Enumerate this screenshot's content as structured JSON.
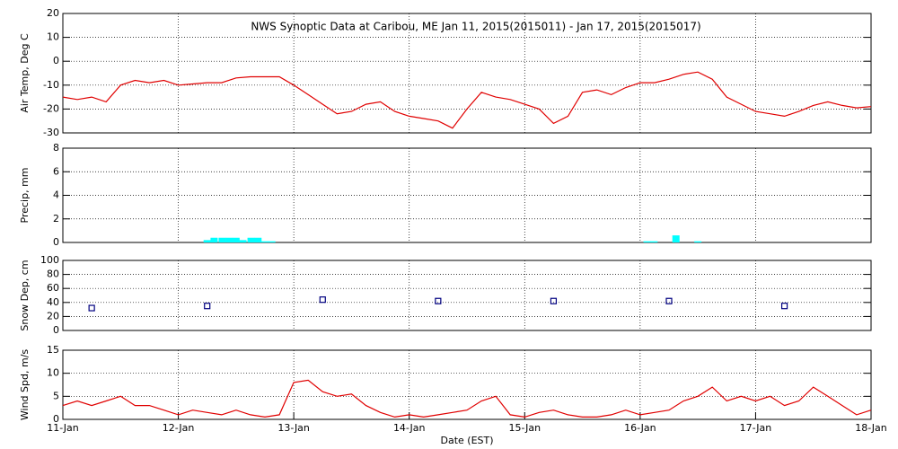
{
  "chart_data": [
    {
      "type": "line",
      "title": "NWS Synoptic Data at Caribou, ME   Jan 11, 2015(2015011) - Jan 17, 2015(2015017)",
      "ylabel": "Air Temp, Deg C",
      "color": "#e00000",
      "x": [
        0,
        0.125,
        0.25,
        0.375,
        0.5,
        0.625,
        0.75,
        0.875,
        1,
        1.125,
        1.25,
        1.375,
        1.5,
        1.625,
        1.75,
        1.875,
        2,
        2.125,
        2.25,
        2.375,
        2.5,
        2.625,
        2.75,
        2.875,
        3,
        3.125,
        3.25,
        3.375,
        3.5,
        3.625,
        3.75,
        3.875,
        4,
        4.125,
        4.25,
        4.375,
        4.5,
        4.625,
        4.75,
        4.875,
        5,
        5.125,
        5.25,
        5.375,
        5.5,
        5.625,
        5.75,
        5.875,
        6,
        6.125,
        6.25,
        6.375,
        6.5,
        6.625,
        6.75,
        6.875,
        7
      ],
      "values": [
        -15,
        -16,
        -15,
        -17,
        -10,
        -8,
        -9,
        -8,
        -10,
        -9.5,
        -9,
        -9,
        -7,
        -6.5,
        -6.5,
        -6.5,
        -10,
        -14,
        -18,
        -22,
        -21,
        -18,
        -17,
        -21,
        -23,
        -24,
        -25,
        -28,
        -20,
        -13,
        -15,
        -16,
        -18,
        -20,
        -26,
        -23,
        -13,
        -12,
        -14,
        -11,
        -9,
        -9,
        -7.5,
        -5.5,
        -4.5,
        -7.5,
        -15,
        -18,
        -21,
        -22,
        -23,
        -21,
        -18.5,
        -17,
        -18.5,
        -19.5,
        -19
      ],
      "xlim": [
        0,
        7
      ],
      "xticks": [
        1,
        2,
        3,
        4,
        5,
        6
      ],
      "ylim": [
        -30,
        20
      ],
      "yticks": [
        -30,
        -20,
        -10,
        0,
        10,
        20
      ],
      "grid": true
    },
    {
      "type": "bar",
      "ylabel": "Precip, mm",
      "color": "#00ffff",
      "x": [
        1.25,
        1.31,
        1.38,
        1.44,
        1.5,
        1.56,
        1.63,
        1.69,
        1.75,
        1.81,
        5.06,
        5.12,
        5.31,
        5.5
      ],
      "values": [
        0.2,
        0.4,
        0.4,
        0.4,
        0.4,
        0.2,
        0.4,
        0.4,
        0.1,
        0.1,
        0.1,
        0.1,
        0.6,
        0.1
      ],
      "xlim": [
        0,
        7
      ],
      "xticks": [
        1,
        2,
        3,
        4,
        5,
        6
      ],
      "ylim": [
        0,
        8
      ],
      "yticks": [
        0,
        2,
        4,
        6,
        8
      ],
      "grid": true
    },
    {
      "type": "scatter",
      "ylabel": "Snow Dep, cm",
      "color": "#000080",
      "x": [
        0.25,
        1.25,
        2.25,
        3.25,
        4.25,
        5.25,
        6.25
      ],
      "values": [
        32,
        35,
        44,
        42,
        42,
        42,
        35
      ],
      "xlim": [
        0,
        7
      ],
      "xticks": [
        1,
        2,
        3,
        4,
        5,
        6
      ],
      "ylim": [
        0,
        100
      ],
      "yticks": [
        0,
        20,
        40,
        60,
        80,
        100
      ],
      "grid": true
    },
    {
      "type": "line",
      "ylabel": "Wind Spd, m/s",
      "xlabel": "Date (EST)",
      "color": "#e00000",
      "x": [
        0,
        0.125,
        0.25,
        0.375,
        0.5,
        0.625,
        0.75,
        0.875,
        1,
        1.125,
        1.25,
        1.375,
        1.5,
        1.625,
        1.75,
        1.875,
        2,
        2.125,
        2.25,
        2.375,
        2.5,
        2.625,
        2.75,
        2.875,
        3,
        3.125,
        3.25,
        3.375,
        3.5,
        3.625,
        3.75,
        3.875,
        4,
        4.125,
        4.25,
        4.375,
        4.5,
        4.625,
        4.75,
        4.875,
        5,
        5.125,
        5.25,
        5.375,
        5.5,
        5.625,
        5.75,
        5.875,
        6,
        6.125,
        6.25,
        6.375,
        6.5,
        6.625,
        6.75,
        6.875,
        7
      ],
      "values": [
        3,
        4,
        3,
        4,
        5,
        3,
        3,
        2,
        1,
        2,
        1.5,
        1,
        2,
        1,
        0.5,
        1,
        8,
        8.5,
        6,
        5,
        5.5,
        3,
        1.5,
        0.5,
        1,
        0.5,
        1,
        1.5,
        2,
        4,
        5,
        1,
        0.5,
        1.5,
        2,
        1,
        0.5,
        0.5,
        1,
        2,
        1,
        1.5,
        2,
        4,
        5,
        7,
        4,
        5,
        4,
        5,
        3,
        4,
        7,
        5,
        3,
        1,
        2
      ],
      "xlim": [
        0,
        7
      ],
      "xticks": [
        {
          "value": 0,
          "label": "11-Jan"
        },
        {
          "value": 1,
          "label": "12-Jan"
        },
        {
          "value": 2,
          "label": "13-Jan"
        },
        {
          "value": 3,
          "label": "14-Jan"
        },
        {
          "value": 4,
          "label": "15-Jan"
        },
        {
          "value": 5,
          "label": "16-Jan"
        },
        {
          "value": 6,
          "label": "17-Jan"
        },
        {
          "value": 7,
          "label": "18-Jan"
        }
      ],
      "ylim": [
        0,
        15
      ],
      "yticks": [
        0,
        5,
        10,
        15
      ],
      "grid": true
    }
  ]
}
